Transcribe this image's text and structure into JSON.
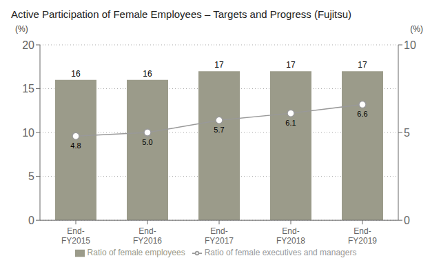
{
  "chart_data": {
    "type": "bar",
    "title": "Active Participation of Female Employees – Targets and Progress (Fujitsu)",
    "categories": [
      "End-\nFY2015",
      "End-\nFY2016",
      "End-\nFY2017",
      "End-\nFY2018",
      "End-\nFY2019"
    ],
    "series": [
      {
        "name": "Ratio of female employees",
        "type": "bar",
        "color": "#9b9b8a",
        "values": [
          16,
          16,
          17,
          17,
          17
        ]
      },
      {
        "name": "Ratio of female executives and managers",
        "type": "line",
        "axis": "y2",
        "color": "#999999",
        "marker": "circle",
        "values": [
          4.8,
          5.0,
          5.7,
          6.1,
          6.6
        ],
        "value_labels": [
          "4.8",
          "5.0",
          "5.7",
          "6.1",
          "6.6"
        ]
      }
    ],
    "y_label": "(%)",
    "y2_label": "(%)",
    "ylim": [
      0,
      20
    ],
    "yticks": [
      0,
      5,
      10,
      15,
      20
    ],
    "y2lim": [
      0,
      10
    ],
    "y2ticks": [
      0,
      5,
      10
    ],
    "grid": true,
    "legend": "bottom",
    "data_labels": true
  }
}
